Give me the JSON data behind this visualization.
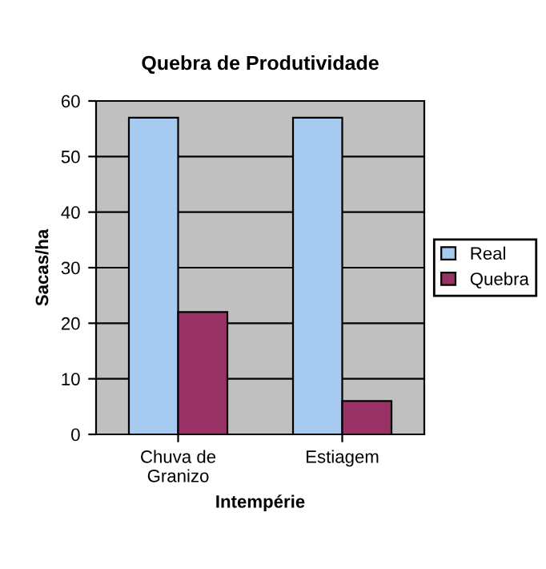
{
  "chart_data": {
    "type": "bar",
    "title": "Quebra de Produtividade",
    "xlabel": "Intempérie",
    "ylabel": "Sacas/ha",
    "categories": [
      "Chuva de\nGranizo",
      "Estiagem"
    ],
    "series": [
      {
        "name": "Real",
        "color": "#a6caf0",
        "values": [
          57,
          57
        ]
      },
      {
        "name": "Quebra",
        "color": "#993366",
        "values": [
          22,
          6
        ]
      }
    ],
    "ylim": [
      0,
      60
    ],
    "yticks": [
      0,
      10,
      20,
      30,
      40,
      50,
      60
    ],
    "grid": "y",
    "legend": "right"
  }
}
